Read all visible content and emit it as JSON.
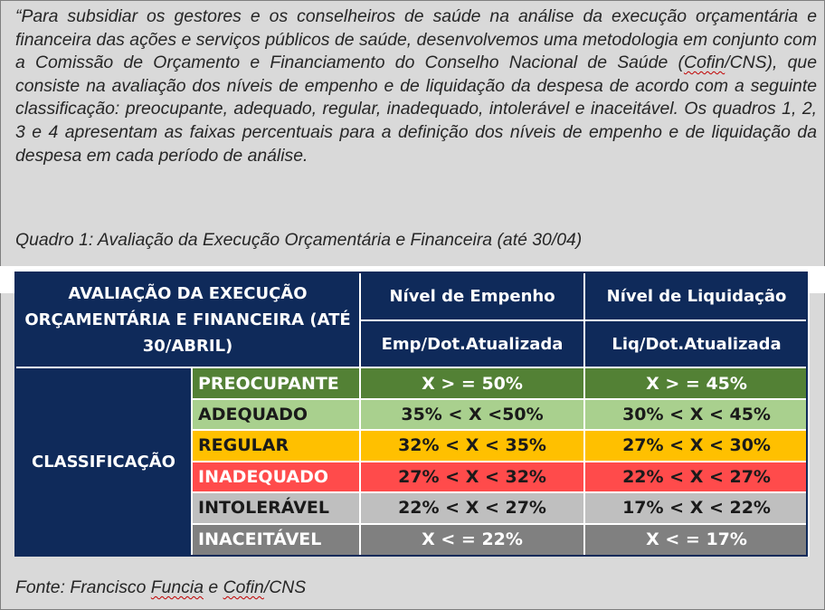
{
  "quote": {
    "part1": "“Para subsidiar os gestores e os conselheiros de saúde na análise da execução orçamentária e financeira das ações e serviços públicos de saúde, desenvolvemos uma metodologia em conjunto com a Comissão de Orçamento e Financiamento do Conselho Nacional de Saúde (",
    "cofin": "Cofin",
    "part2": "/CNS), que consiste na avaliação dos níveis de empenho e de liquidação da despesa de acordo com a seguinte classificação: preocupante, adequado, regular, inadequado, intolerável e inaceitável. Os quadros 1, 2, 3 e 4 apresentam as faixas percentuais para a definição dos níveis de empenho e de liquidação da despesa em cada período de análise."
  },
  "quadro_title": "Quadro 1: Avaliação da Execução Orçamentária e Financeira (até 30/04)",
  "table": {
    "header_main": "AVALIAÇÃO DA EXECUÇÃO ORÇAMENTÁRIA E FINANCEIRA (ATÉ 30/ABRIL)",
    "col1_title": "Nível de Empenho",
    "col2_title": "Nível de Liquidação",
    "col1_sub": "Emp/Dot.Atualizada",
    "col2_sub": "Liq/Dot.Atualizada",
    "classification_label": "CLASSIFICAÇÃO",
    "rows": [
      {
        "label": "PREOCUPANTE",
        "empenho": "X > = 50%",
        "liquidacao": "X > = 45%"
      },
      {
        "label": "ADEQUADO",
        "empenho": "35% < X <50%",
        "liquidacao": "30% < X < 45%"
      },
      {
        "label": "REGULAR",
        "empenho": "32% < X < 35%",
        "liquidacao": "27% < X < 30%"
      },
      {
        "label": "INADEQUADO",
        "empenho": "27% < X < 32%",
        "liquidacao": "22% < X < 27%"
      },
      {
        "label": "INTOLERÁVEL",
        "empenho": "22% < X < 27%",
        "liquidacao": "17% < X < 22%"
      },
      {
        "label": "INACEITÁVEL",
        "empenho": "X < = 22%",
        "liquidacao": "X < = 17%"
      }
    ]
  },
  "fonte": {
    "prefix": "Fonte: Francisco ",
    "funcia": "Funcia",
    "mid": " e ",
    "cofin": "Cofin",
    "suffix": "/CNS"
  },
  "colors": {
    "navy": "#0f2a5a",
    "preocupante": "#538135",
    "adequado": "#a9d08e",
    "regular": "#ffc000",
    "inadequado": "#ff4b4b",
    "intoleravel": "#bfbfbf",
    "inaceitavel": "#808080",
    "background": "#d9d9d9"
  }
}
